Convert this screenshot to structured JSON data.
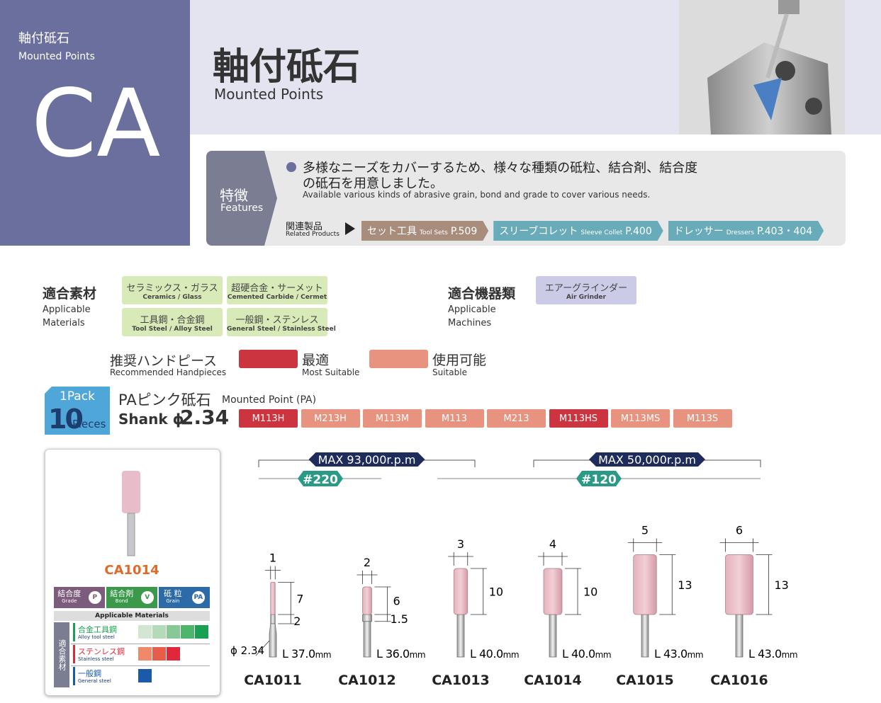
{
  "sidebar": {
    "category_jp": "軸付砥石",
    "category_en": "Mounted Points",
    "code": "CA"
  },
  "header": {
    "title_jp": "軸付砥石",
    "title_en": "Mounted Points"
  },
  "features": {
    "label_jp": "特徴",
    "label_en": "Features",
    "text_jp": [
      "多様なニーズをカバーするため、様々な種類の砥粒、結合剤、結合度",
      "の砥石を用意しました。"
    ],
    "text_en": "Available various kinds of abrasive grain, bond and grade to cover various needs.",
    "related_label_jp": "関連製品",
    "related_label_en": "Related Products",
    "related": [
      {
        "jp": "セット工具",
        "en": "Tool Sets",
        "page": "P.509",
        "color": "#a88c7c"
      },
      {
        "jp": "スリーブコレット",
        "en": "Sleeve Collet",
        "page": "P.400",
        "color": "#6aabb9"
      },
      {
        "jp": "ドレッサー",
        "en": "Dressers",
        "page": "P.403・404",
        "color": "#6aabb9"
      }
    ]
  },
  "materials": {
    "label_jp": "適合素材",
    "label_en": "Applicable Materials",
    "items": [
      {
        "jp": "セラミックス・ガラス",
        "en": "Ceramics / Glass"
      },
      {
        "jp": "超硬合金・サーメット",
        "en": "Cemented Carbide / Cermet"
      },
      {
        "jp": "工具鋼・合金鋼",
        "en": "Tool Steel / Alloy Steel"
      },
      {
        "jp": "一般鋼・ステンレス",
        "en": "General Steel / Stainless Steel"
      }
    ]
  },
  "machines": {
    "label_jp": "適合機器類",
    "label_en": "Applicable Machines",
    "items": [
      {
        "jp": "エアーグラインダー",
        "en": "Air Grinder"
      }
    ]
  },
  "handpiece_legend": {
    "label_jp": "推奨ハンドピース",
    "label_en": "Recommended Handpieces",
    "levels": [
      {
        "jp": "最適",
        "en": "Most Suitable",
        "color": "#cc3440"
      },
      {
        "jp": "使用可能",
        "en": "Suitable",
        "color": "#e8937f"
      }
    ]
  },
  "pack": {
    "label": "1Pack",
    "count": "10",
    "unit": "Pieces"
  },
  "product": {
    "name_jp": "PAピンク砥石",
    "name_en": "Mounted Point (PA)",
    "shank_label": "Shank ϕ",
    "shank": 2.34
  },
  "handpieces": [
    {
      "name": "M113H",
      "level": 0
    },
    {
      "name": "M213H",
      "level": 1
    },
    {
      "name": "M113M",
      "level": 1
    },
    {
      "name": "M113",
      "level": 1
    },
    {
      "name": "M213",
      "level": 1
    },
    {
      "name": "M113HS",
      "level": 0
    },
    {
      "name": "M113MS",
      "level": 1
    },
    {
      "name": "M113S",
      "level": 1
    }
  ],
  "speeds": [
    {
      "label": "MAX 93,000r.p.m",
      "grit": "#220"
    },
    {
      "label": "MAX 50,000r.p.m",
      "grit": "#120"
    }
  ],
  "card": {
    "code": "CA1014",
    "specs": [
      {
        "jp": "結合度",
        "en": "Grade",
        "value": "P",
        "color": "#7d5b7d"
      },
      {
        "jp": "結合剤",
        "en": "Bond",
        "value": "V",
        "color": "#3a9a4a"
      },
      {
        "jp": "砥 粒",
        "en": "Grain",
        "value": "PA",
        "color": "#2d6aa8"
      }
    ],
    "materials_header": "Applicable Materials",
    "side_label": "適合素材",
    "rows": [
      {
        "jp": "合金工具鋼",
        "en": "Alloy tool steel",
        "cells": [
          "#d3e6d3",
          "#b3dbba",
          "#86c896",
          "#4fb56c",
          "#1aa052"
        ]
      },
      {
        "jp": "ステンレス鋼",
        "en": "Stainless steel",
        "cells": [
          "#f0896a",
          "#e85c4a",
          "#e0283a"
        ]
      },
      {
        "jp": "一般鋼",
        "en": "General steel",
        "cells": [
          "#1a5aa8"
        ]
      }
    ]
  },
  "products": [
    {
      "code": "CA1011",
      "diameter": 1,
      "head": 7,
      "neck": 2,
      "shank_label": "ϕ 2.34",
      "length": "L 37.0"
    },
    {
      "code": "CA1012",
      "diameter": 2,
      "head": 6,
      "neck": 1.5,
      "length": "L 36.0"
    },
    {
      "code": "CA1013",
      "diameter": 3,
      "head": 10,
      "length": "L 40.0"
    },
    {
      "code": "CA1014",
      "diameter": 4,
      "head": 10,
      "length": "L 40.0"
    },
    {
      "code": "CA1015",
      "diameter": 5,
      "head": 13,
      "length": "L 43.0"
    },
    {
      "code": "CA1016",
      "diameter": 6,
      "head": 13,
      "length": "L 43.0"
    }
  ],
  "length_unit": "mm"
}
